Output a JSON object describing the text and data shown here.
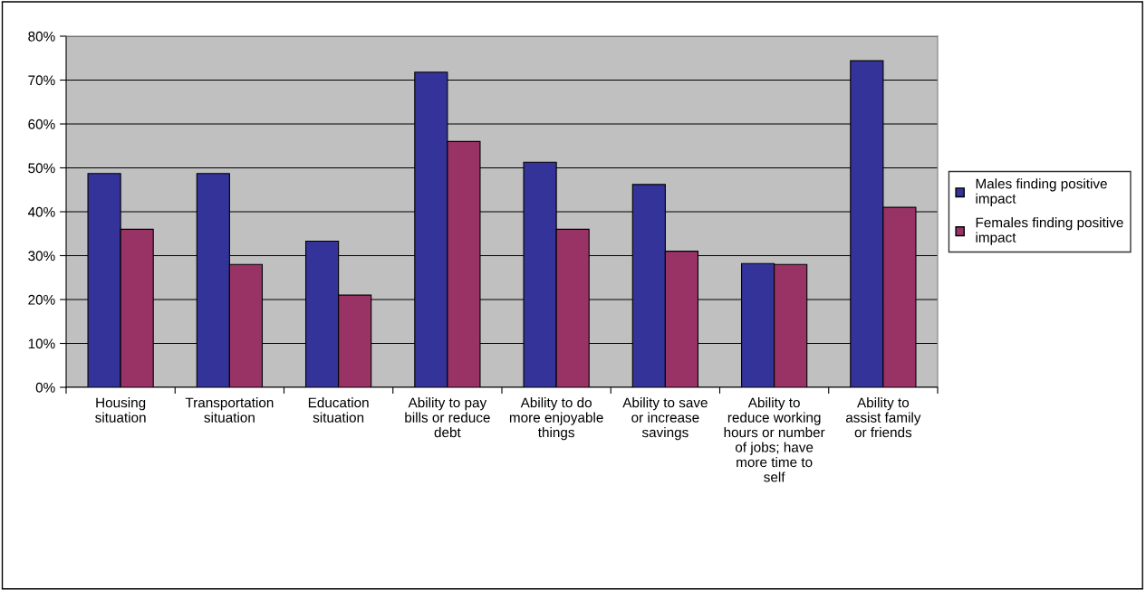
{
  "chart_data": {
    "type": "bar",
    "categories": [
      "Housing situation",
      "Transportation situation",
      "Education situation",
      "Ability to pay bills or reduce debt",
      "Ability to do more enjoyable things",
      "Ability to save or increase savings",
      "Ability to reduce working hours or number of jobs; have more time to self",
      "Ability to assist family or friends"
    ],
    "series": [
      {
        "name": "Males finding positive impact",
        "color": "#333399",
        "values": [
          0.487,
          0.487,
          0.333,
          0.718,
          0.513,
          0.462,
          0.282,
          0.744
        ]
      },
      {
        "name": "Females finding positive impact",
        "color": "#993366",
        "values": [
          0.36,
          0.28,
          0.21,
          0.56,
          0.36,
          0.31,
          0.28,
          0.41
        ]
      }
    ],
    "ylim": [
      0,
      0.8
    ],
    "yticks": [
      {
        "value": 0,
        "label": "0%"
      },
      {
        "value": 0.1,
        "label": "10%"
      },
      {
        "value": 0.2,
        "label": "20%"
      },
      {
        "value": 0.3,
        "label": "30%"
      },
      {
        "value": 0.4,
        "label": "40%"
      },
      {
        "value": 0.5,
        "label": "50%"
      },
      {
        "value": 0.6,
        "label": "60%"
      },
      {
        "value": 0.7,
        "label": "70%"
      },
      {
        "value": 0.8,
        "label": "80%"
      }
    ],
    "grid": "y",
    "legend": "right"
  }
}
